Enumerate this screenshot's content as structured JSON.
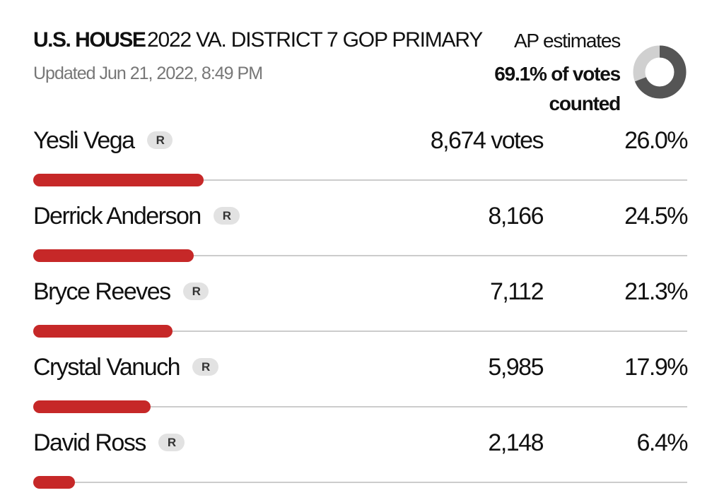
{
  "header": {
    "office": "U.S. HOUSE",
    "race": "2022 VA. DISTRICT 7 GOP PRIMARY",
    "updated": "Updated Jun 21, 2022, 8:49 PM"
  },
  "estimate": {
    "label": "AP estimates",
    "counted_label": "69.1% of votes counted",
    "percent": 69.1
  },
  "candidates": [
    {
      "name": "Yesli Vega",
      "party": "R",
      "votes": "8,674 votes",
      "percent": 26.0,
      "percent_label": "26.0%"
    },
    {
      "name": "Derrick Anderson",
      "party": "R",
      "votes": "8,166",
      "percent": 24.5,
      "percent_label": "24.5%"
    },
    {
      "name": "Bryce Reeves",
      "party": "R",
      "votes": "7,112",
      "percent": 21.3,
      "percent_label": "21.3%"
    },
    {
      "name": "Crystal Vanuch",
      "party": "R",
      "votes": "5,985",
      "percent": 17.9,
      "percent_label": "17.9%"
    },
    {
      "name": "David Ross",
      "party": "R",
      "votes": "2,148",
      "percent": 6.4,
      "percent_label": "6.4%"
    }
  ]
}
